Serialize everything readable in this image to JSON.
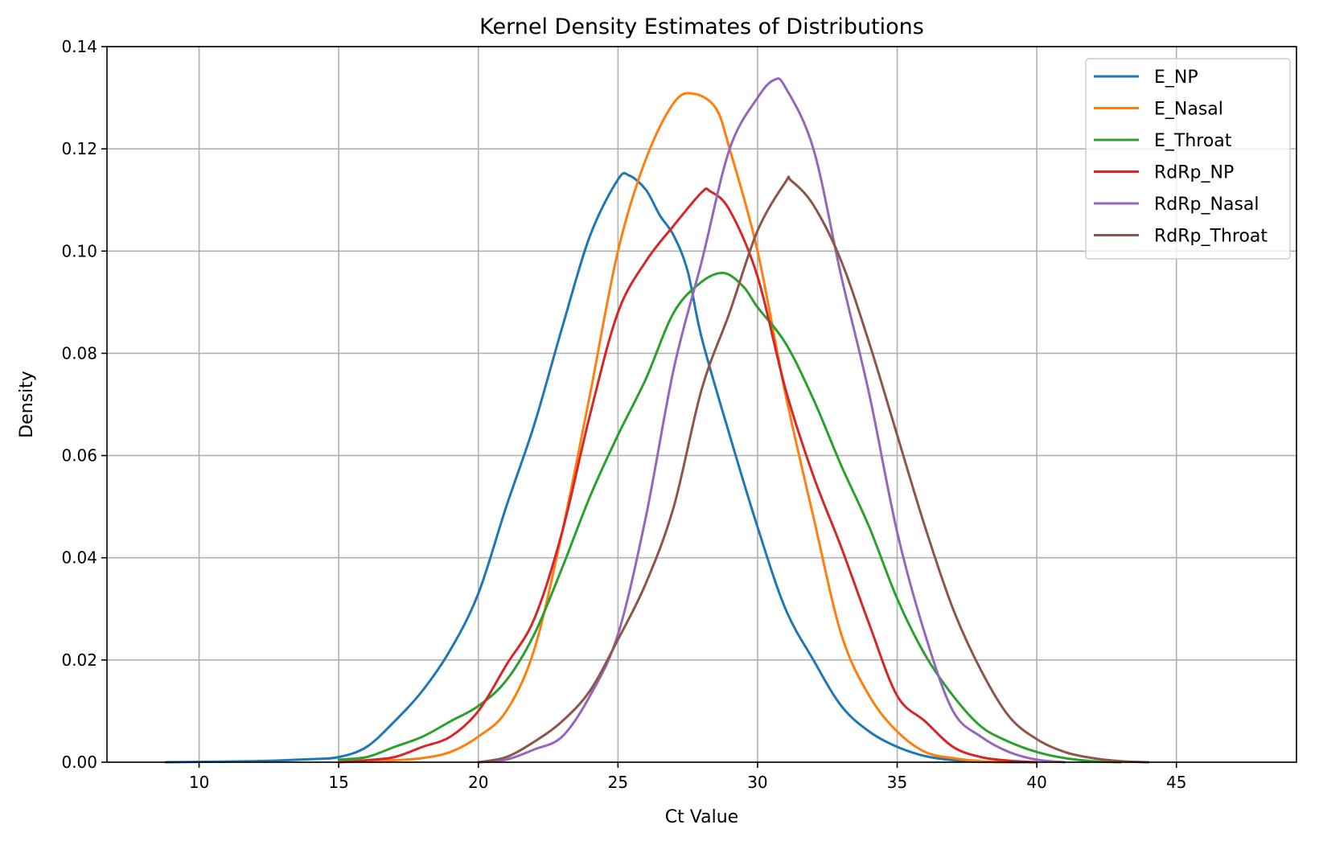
{
  "chart_data": {
    "type": "line",
    "title": "Kernel Density Estimates of Distributions",
    "xlabel": "Ct Value",
    "ylabel": "Density",
    "xlim": [
      6.7,
      49.3
    ],
    "ylim": [
      0,
      0.14
    ],
    "xticks": [
      10,
      15,
      20,
      25,
      30,
      35,
      40,
      45
    ],
    "yticks": [
      0.0,
      0.02,
      0.04,
      0.06,
      0.08,
      0.1,
      0.12,
      0.14
    ],
    "ytick_labels": [
      "0.00",
      "0.02",
      "0.04",
      "0.06",
      "0.08",
      "0.10",
      "0.12",
      "0.14"
    ],
    "grid": true,
    "legend_position": "top-right",
    "series": [
      {
        "name": "E_NP",
        "color": "#1f77b4",
        "points": [
          [
            8.8,
            0
          ],
          [
            12,
            0.0002
          ],
          [
            14,
            0.0006
          ],
          [
            15,
            0.001
          ],
          [
            16,
            0.003
          ],
          [
            17,
            0.008
          ],
          [
            18,
            0.014
          ],
          [
            19,
            0.022
          ],
          [
            20,
            0.033
          ],
          [
            21,
            0.05
          ],
          [
            22,
            0.066
          ],
          [
            23,
            0.085
          ],
          [
            24,
            0.103
          ],
          [
            25,
            0.114
          ],
          [
            25.4,
            0.1148
          ],
          [
            26,
            0.112
          ],
          [
            26.5,
            0.107
          ],
          [
            27,
            0.103
          ],
          [
            27.5,
            0.096
          ],
          [
            28,
            0.083
          ],
          [
            29,
            0.064
          ],
          [
            30,
            0.046
          ],
          [
            31,
            0.03
          ],
          [
            32,
            0.02
          ],
          [
            33,
            0.011
          ],
          [
            34,
            0.006
          ],
          [
            35,
            0.003
          ],
          [
            36,
            0.0012
          ],
          [
            37,
            0.0004
          ],
          [
            38,
            0.0001
          ],
          [
            40,
            0
          ]
        ]
      },
      {
        "name": "E_Nasal",
        "color": "#ff7f0e",
        "points": [
          [
            15,
            0
          ],
          [
            17,
            0.0004
          ],
          [
            18,
            0.0008
          ],
          [
            19,
            0.002
          ],
          [
            20,
            0.005
          ],
          [
            21,
            0.01
          ],
          [
            22,
            0.022
          ],
          [
            23,
            0.045
          ],
          [
            24,
            0.072
          ],
          [
            25,
            0.1
          ],
          [
            26,
            0.118
          ],
          [
            27,
            0.129
          ],
          [
            27.7,
            0.1308
          ],
          [
            28.5,
            0.128
          ],
          [
            29,
            0.12
          ],
          [
            30,
            0.1
          ],
          [
            31,
            0.072
          ],
          [
            32,
            0.048
          ],
          [
            33,
            0.025
          ],
          [
            34,
            0.013
          ],
          [
            35,
            0.006
          ],
          [
            36,
            0.002
          ],
          [
            37,
            0.0008
          ],
          [
            38,
            0.0002
          ],
          [
            39,
            0
          ]
        ]
      },
      {
        "name": "E_Throat",
        "color": "#2ca02c",
        "points": [
          [
            15,
            0.0005
          ],
          [
            16,
            0.001
          ],
          [
            17,
            0.003
          ],
          [
            18,
            0.005
          ],
          [
            19,
            0.008
          ],
          [
            20,
            0.011
          ],
          [
            21,
            0.016
          ],
          [
            22,
            0.025
          ],
          [
            23,
            0.038
          ],
          [
            24,
            0.052
          ],
          [
            25,
            0.064
          ],
          [
            26,
            0.075
          ],
          [
            27,
            0.088
          ],
          [
            28,
            0.094
          ],
          [
            28.8,
            0.0957
          ],
          [
            29.5,
            0.093
          ],
          [
            30,
            0.089
          ],
          [
            31,
            0.082
          ],
          [
            32,
            0.071
          ],
          [
            33,
            0.058
          ],
          [
            34,
            0.046
          ],
          [
            35,
            0.032
          ],
          [
            36,
            0.021
          ],
          [
            37,
            0.013
          ],
          [
            38,
            0.007
          ],
          [
            39,
            0.004
          ],
          [
            40,
            0.002
          ],
          [
            41,
            0.0008
          ],
          [
            42,
            0.0002
          ],
          [
            43,
            0
          ]
        ]
      },
      {
        "name": "RdRp_NP",
        "color": "#d62728",
        "points": [
          [
            15,
            0
          ],
          [
            16,
            0.0004
          ],
          [
            17,
            0.001
          ],
          [
            18,
            0.003
          ],
          [
            19,
            0.005
          ],
          [
            20,
            0.01
          ],
          [
            21,
            0.019
          ],
          [
            22,
            0.028
          ],
          [
            23,
            0.045
          ],
          [
            24,
            0.068
          ],
          [
            25,
            0.088
          ],
          [
            26,
            0.098
          ],
          [
            27,
            0.105
          ],
          [
            28,
            0.1115
          ],
          [
            28.3,
            0.1117
          ],
          [
            29,
            0.108
          ],
          [
            30,
            0.095
          ],
          [
            31,
            0.073
          ],
          [
            32,
            0.056
          ],
          [
            33,
            0.042
          ],
          [
            34,
            0.027
          ],
          [
            35,
            0.013
          ],
          [
            36,
            0.008
          ],
          [
            37,
            0.003
          ],
          [
            38,
            0.001
          ],
          [
            39,
            0.0003
          ],
          [
            40,
            0
          ]
        ]
      },
      {
        "name": "RdRp_Nasal",
        "color": "#9467bd",
        "points": [
          [
            20,
            0
          ],
          [
            21,
            0.0005
          ],
          [
            22,
            0.0025
          ],
          [
            23,
            0.005
          ],
          [
            24,
            0.013
          ],
          [
            25,
            0.025
          ],
          [
            26,
            0.048
          ],
          [
            27,
            0.077
          ],
          [
            28,
            0.098
          ],
          [
            29,
            0.12
          ],
          [
            30,
            0.13
          ],
          [
            30.6,
            0.1335
          ],
          [
            31,
            0.132
          ],
          [
            32,
            0.12
          ],
          [
            33,
            0.095
          ],
          [
            34,
            0.072
          ],
          [
            35,
            0.045
          ],
          [
            36,
            0.025
          ],
          [
            37,
            0.01
          ],
          [
            38,
            0.005
          ],
          [
            39,
            0.002
          ],
          [
            40,
            0.0005
          ],
          [
            41,
            0
          ]
        ]
      },
      {
        "name": "RdRp_Throat",
        "color": "#8c564b",
        "points": [
          [
            20,
            0
          ],
          [
            21,
            0.001
          ],
          [
            22,
            0.004
          ],
          [
            23,
            0.008
          ],
          [
            24,
            0.014
          ],
          [
            25,
            0.024
          ],
          [
            26,
            0.035
          ],
          [
            27,
            0.05
          ],
          [
            28,
            0.073
          ],
          [
            29,
            0.088
          ],
          [
            30,
            0.104
          ],
          [
            31,
            0.1135
          ],
          [
            31.2,
            0.1138
          ],
          [
            32,
            0.109
          ],
          [
            33,
            0.098
          ],
          [
            34,
            0.082
          ],
          [
            35,
            0.064
          ],
          [
            36,
            0.046
          ],
          [
            37,
            0.03
          ],
          [
            38,
            0.018
          ],
          [
            39,
            0.009
          ],
          [
            40,
            0.0045
          ],
          [
            41,
            0.002
          ],
          [
            42,
            0.0008
          ],
          [
            43,
            0.0002
          ],
          [
            44,
            0
          ]
        ]
      }
    ]
  }
}
